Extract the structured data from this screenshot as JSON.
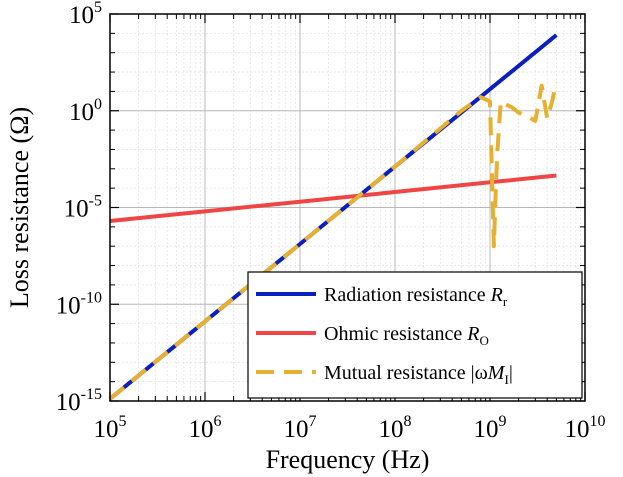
{
  "chart_data": {
    "type": "line",
    "xlabel": "Frequency (Hz)",
    "ylabel": "Loss resistance (Ω)",
    "x_scale": "log",
    "y_scale": "log",
    "xlim": [
      100000,
      10000000000
    ],
    "ylim": [
      1e-15,
      100000
    ],
    "grid": true,
    "legend_position": "bottom-right",
    "x_ticks": [
      {
        "base": "10",
        "exp": "5"
      },
      {
        "base": "10",
        "exp": "6"
      },
      {
        "base": "10",
        "exp": "7"
      },
      {
        "base": "10",
        "exp": "8"
      },
      {
        "base": "10",
        "exp": "9"
      },
      {
        "base": "10",
        "exp": "10"
      }
    ],
    "x_tick_values": [
      100000,
      1000000,
      10000000,
      100000000,
      1000000000,
      10000000000
    ],
    "y_ticks": [
      {
        "base": "10",
        "exp": "-15"
      },
      {
        "base": "10",
        "exp": "-10"
      },
      {
        "base": "10",
        "exp": "-5"
      },
      {
        "base": "10",
        "exp": "0"
      },
      {
        "base": "10",
        "exp": "5"
      }
    ],
    "y_tick_values": [
      1e-15,
      1e-10,
      1e-05,
      1,
      100000
    ],
    "series": [
      {
        "legend_main": "Radiation resistance ",
        "legend_sym": "R",
        "legend_sub": "r",
        "color": "#0a1fbf",
        "style": "solid",
        "x": [
          100000,
          1000000,
          10000000,
          100000000,
          1000000000,
          5000000000
        ],
        "y": [
          1.3e-15,
          1.3e-11,
          1.3e-07,
          0.0013,
          13,
          8100
        ]
      },
      {
        "legend_main": "Ohmic resistance ",
        "legend_sym": "R",
        "legend_sub": "O",
        "color": "#f04545",
        "style": "solid",
        "x": [
          100000,
          1000000,
          10000000,
          100000000,
          1000000000,
          5000000000
        ],
        "y": [
          2e-06,
          6.3e-06,
          2e-05,
          6.3e-05,
          0.0002,
          0.00045
        ]
      },
      {
        "legend_main": "Mutual resistance |ω",
        "legend_sym": "M",
        "legend_sub": "I",
        "legend_tail": "|",
        "color": "#e8b030",
        "style": "dashed",
        "x": [
          100000,
          1000000,
          10000000,
          100000000,
          500000000,
          800000000,
          1000000000,
          1100000000,
          1150000000,
          1200000000,
          1300000000,
          1500000000,
          1700000000,
          2000000000,
          2500000000,
          3000000000,
          3500000000,
          4000000000,
          4500000000,
          5000000000
        ],
        "y": [
          1.3e-15,
          1.3e-11,
          1.3e-07,
          0.0013,
          1,
          5,
          3,
          1e-07,
          0.0001,
          0.01,
          3,
          2,
          1.5,
          0.8,
          0.5,
          0.3,
          20,
          0.4,
          3,
          30
        ]
      }
    ]
  }
}
